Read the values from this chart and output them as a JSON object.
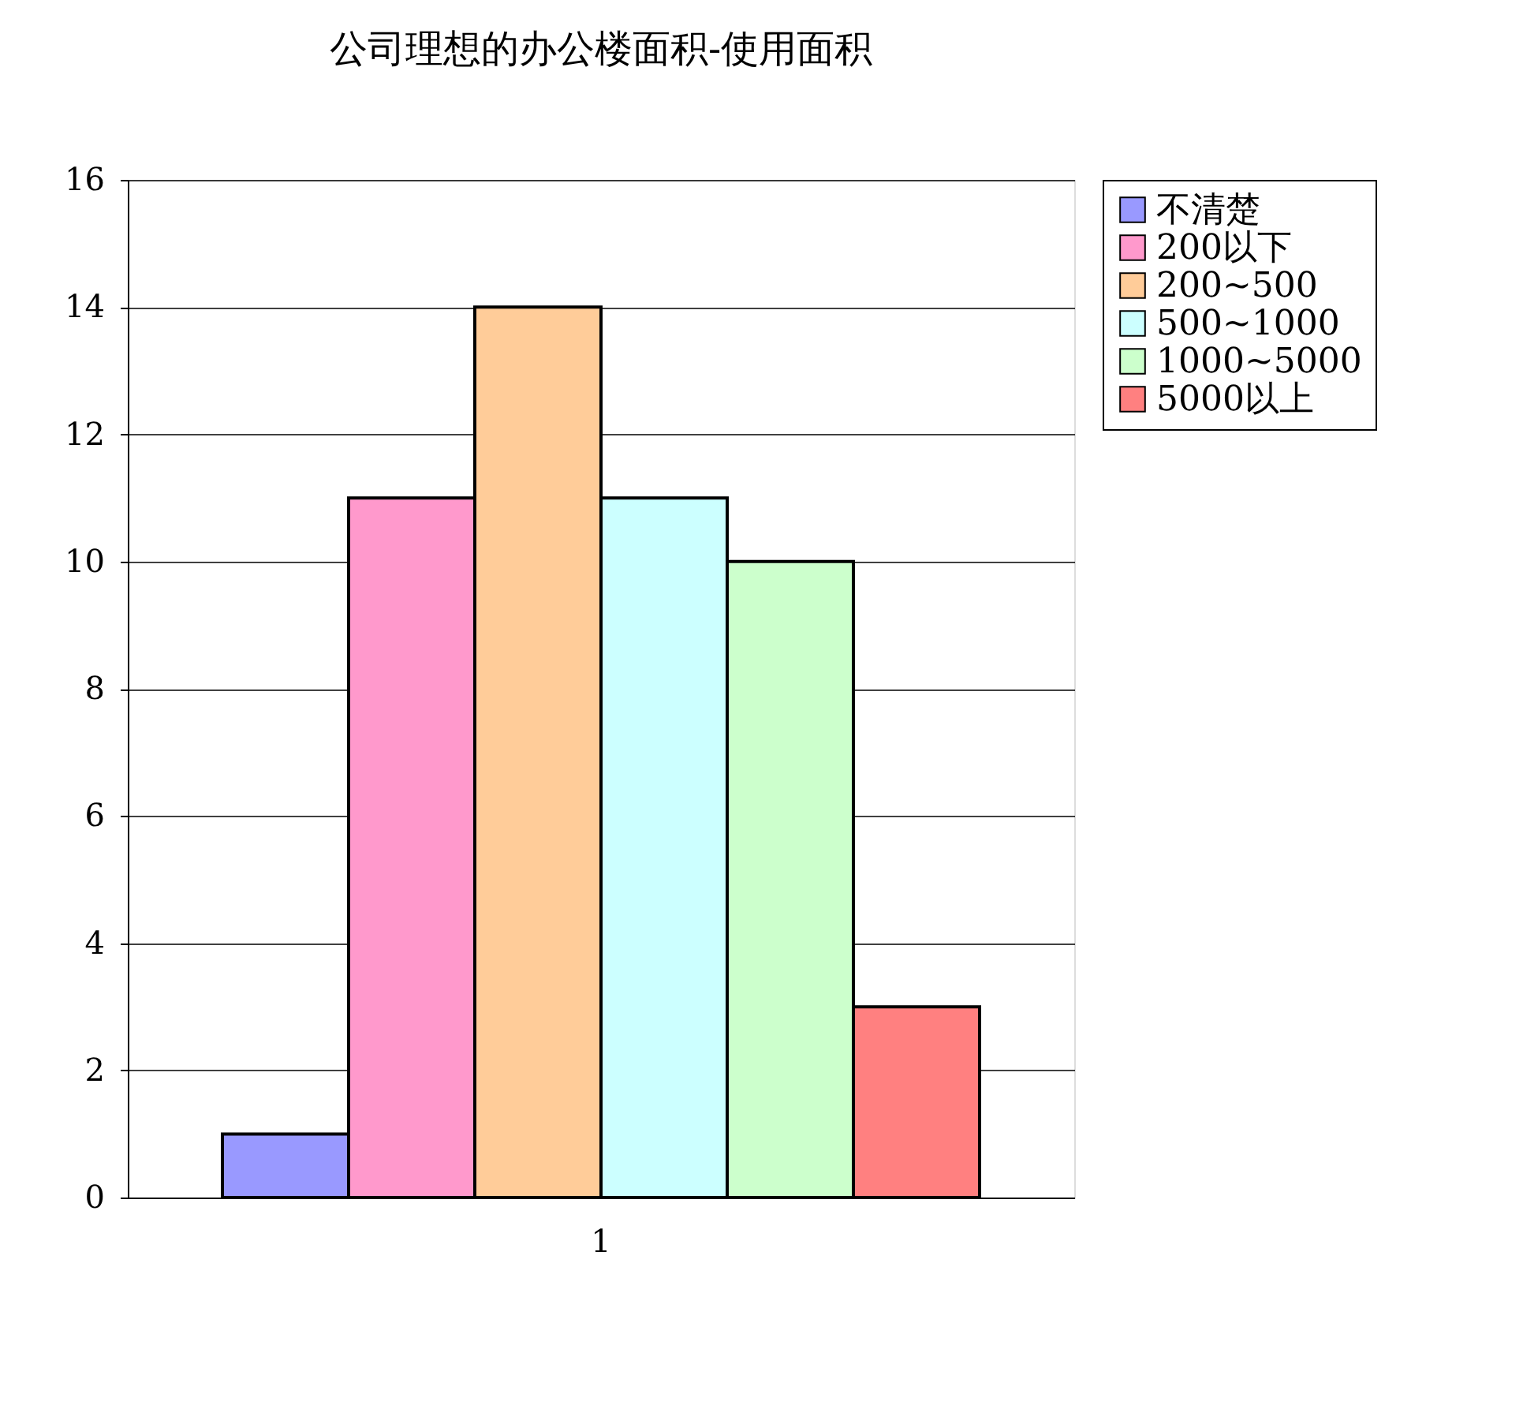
{
  "chart_data": {
    "type": "bar",
    "title": "公司理想的办公楼面积-使用面积",
    "categories": [
      "1"
    ],
    "series": [
      {
        "name": "不清楚",
        "color": "#9999ff",
        "values": [
          1
        ]
      },
      {
        "name": "200以下",
        "color": "#ff99cc",
        "values": [
          11
        ]
      },
      {
        "name": "200~500",
        "color": "#ffcc99",
        "values": [
          14
        ]
      },
      {
        "name": "500~1000",
        "color": "#ccffff",
        "values": [
          11
        ]
      },
      {
        "name": "1000~5000",
        "color": "#ccffcc",
        "values": [
          10
        ]
      },
      {
        "name": "5000以上",
        "color": "#ff8080",
        "values": [
          3
        ]
      }
    ],
    "ylim": [
      0,
      16
    ],
    "yticks": [
      0,
      2,
      4,
      6,
      8,
      10,
      12,
      14,
      16
    ],
    "grid": "y",
    "legend": "right"
  }
}
